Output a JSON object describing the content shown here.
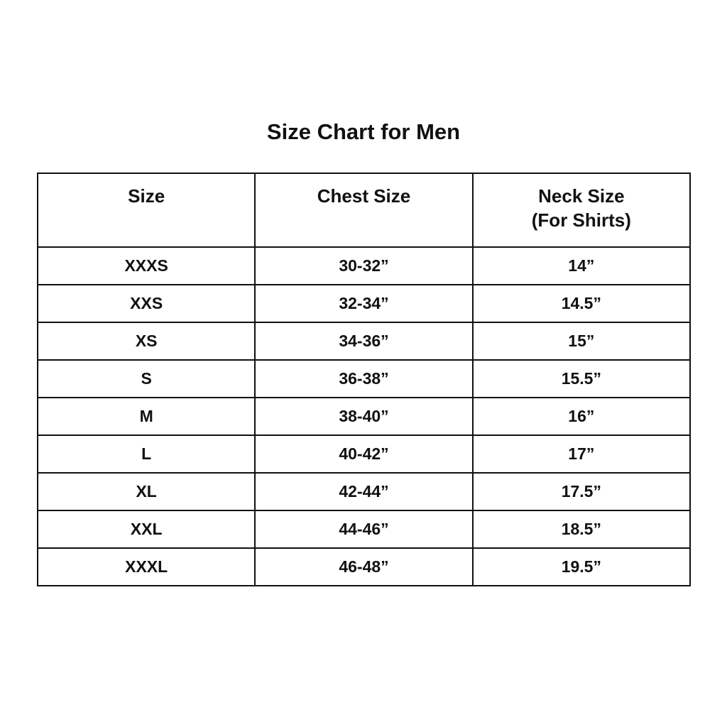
{
  "title": "Size Chart for Men",
  "table": {
    "headers": [
      "Size",
      "Chest Size",
      "Neck Size",
      "(For Shirts)"
    ],
    "rows": [
      [
        "XXXS",
        "30-32”",
        "14”"
      ],
      [
        "XXS",
        "32-34”",
        "14.5”"
      ],
      [
        "XS",
        "34-36”",
        "15”"
      ],
      [
        "S",
        "36-38”",
        "15.5”"
      ],
      [
        "M",
        "38-40”",
        "16”"
      ],
      [
        "L",
        "40-42”",
        "17”"
      ],
      [
        "XL",
        "42-44”",
        "17.5”"
      ],
      [
        "XXL",
        "44-46”",
        "18.5”"
      ],
      [
        "XXXL",
        "46-48”",
        "19.5”"
      ]
    ]
  }
}
